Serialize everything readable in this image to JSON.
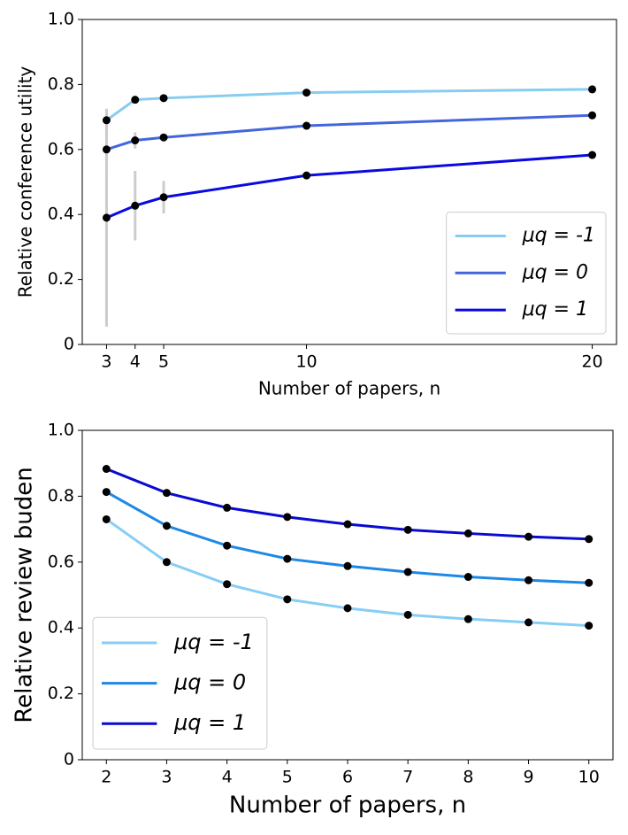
{
  "chart_data": [
    {
      "type": "line",
      "xlabel": "Number of papers, n",
      "ylabel": "Relative conference utility",
      "x": [
        3,
        4,
        5,
        10,
        20
      ],
      "xlim": [
        2.15,
        20.85
      ],
      "xticks": [
        3,
        4,
        5,
        10,
        20
      ],
      "ylim": [
        0,
        1
      ],
      "yticks": [
        0,
        0.2,
        0.4,
        0.6,
        0.8,
        {
          "value": 1,
          "label": "1.0"
        }
      ],
      "legend": "lower right",
      "series": [
        {
          "name": "μq = -1",
          "color": "#87cdf0",
          "values": [
            0.69,
            0.753,
            0.758,
            0.775,
            0.785
          ],
          "errors": [
            0.03,
            0.005,
            0.005,
            0,
            0
          ]
        },
        {
          "name": "μq = 0",
          "color": "#4466dd",
          "values": [
            0.6,
            0.628,
            0.637,
            0.673,
            0.705
          ],
          "errors": [
            0.1,
            0.025,
            0.01,
            0,
            0
          ]
        },
        {
          "name": "μq = 1",
          "color": "#0a0ae0",
          "values": [
            0.39,
            0.427,
            0.453,
            0.52,
            0.583
          ],
          "errors": [
            0.335,
            0.107,
            0.05,
            0,
            0
          ]
        }
      ]
    },
    {
      "type": "line",
      "xlabel": "Number of papers, n",
      "ylabel": "Relative review buden",
      "x": [
        2,
        3,
        4,
        5,
        6,
        7,
        8,
        9,
        10
      ],
      "xlim": [
        1.6,
        10.4
      ],
      "xticks": [
        2,
        3,
        4,
        5,
        6,
        7,
        8,
        9,
        10
      ],
      "ylim": [
        0,
        1
      ],
      "yticks": [
        0,
        0.2,
        0.4,
        0.6,
        0.8,
        {
          "value": 1,
          "label": "1.0"
        }
      ],
      "legend": "lower left",
      "series": [
        {
          "name": "μq = -1",
          "color": "#87cdf5",
          "values": [
            0.73,
            0.6,
            0.533,
            0.487,
            0.46,
            0.44,
            0.427,
            0.417,
            0.407
          ]
        },
        {
          "name": "μq = 0",
          "color": "#1e88e5",
          "values": [
            0.813,
            0.71,
            0.65,
            0.61,
            0.588,
            0.57,
            0.555,
            0.545,
            0.537
          ]
        },
        {
          "name": "μq = 1",
          "color": "#0a0ad0",
          "values": [
            0.883,
            0.81,
            0.765,
            0.737,
            0.715,
            0.698,
            0.687,
            0.677,
            0.67
          ]
        }
      ]
    }
  ]
}
